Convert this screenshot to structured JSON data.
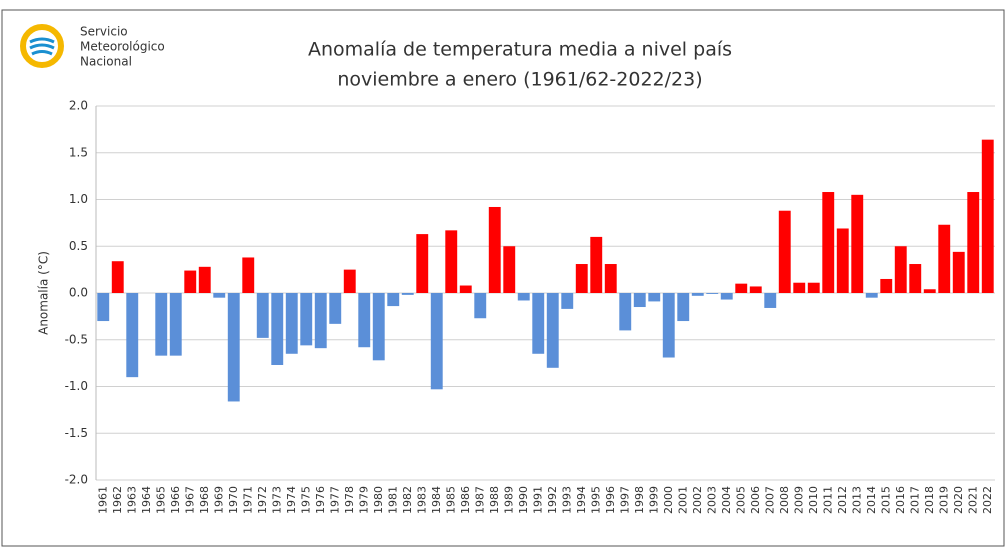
{
  "logo": {
    "lines": [
      "Servicio",
      "Meteorológico",
      "Nacional"
    ]
  },
  "chart_data": {
    "type": "bar",
    "title": "Anomalía de temperatura media a nivel país",
    "subtitle": "noviembre a enero (1961/62-2022/23)",
    "y_label": "Anomalía (°C)",
    "categories": [
      "1961",
      "1962",
      "1963",
      "1964",
      "1965",
      "1966",
      "1967",
      "1968",
      "1969",
      "1970",
      "1971",
      "1972",
      "1973",
      "1974",
      "1975",
      "1976",
      "1977",
      "1978",
      "1979",
      "1980",
      "1981",
      "1982",
      "1983",
      "1984",
      "1985",
      "1986",
      "1987",
      "1988",
      "1989",
      "1990",
      "1991",
      "1992",
      "1993",
      "1994",
      "1995",
      "1996",
      "1997",
      "1998",
      "1999",
      "2000",
      "2001",
      "2002",
      "2003",
      "2004",
      "2005",
      "2006",
      "2007",
      "2008",
      "2009",
      "2010",
      "2011",
      "2012",
      "2013",
      "2014",
      "2015",
      "2016",
      "2017",
      "2018",
      "2019",
      "2020",
      "2021",
      "2022"
    ],
    "values": [
      -0.3,
      0.34,
      -0.9,
      0.0,
      -0.67,
      -0.67,
      0.24,
      0.28,
      -0.05,
      -1.16,
      0.38,
      -0.48,
      -0.77,
      -0.65,
      -0.56,
      -0.59,
      -0.33,
      0.25,
      -0.58,
      -0.72,
      -0.14,
      -0.02,
      0.63,
      -1.03,
      0.67,
      0.08,
      -0.27,
      0.92,
      0.5,
      -0.08,
      -0.65,
      -0.8,
      -0.17,
      0.31,
      0.6,
      0.31,
      -0.4,
      -0.15,
      -0.09,
      -0.69,
      -0.3,
      -0.03,
      -0.01,
      -0.07,
      0.1,
      0.07,
      -0.16,
      0.88,
      0.11,
      0.11,
      1.08,
      0.69,
      1.05,
      -0.05,
      0.15,
      0.5,
      0.31,
      0.04,
      0.73,
      0.44,
      1.08,
      1.64
    ],
    "positive_color": "#ff0000",
    "negative_color": "#5b8fd8",
    "ylim": [
      -2,
      2
    ],
    "yticks": [
      {
        "value": -2,
        "label": "-2.0"
      },
      {
        "value": -1.5,
        "label": "-1.5"
      },
      {
        "value": -1,
        "label": "-1.0"
      },
      {
        "value": -0.5,
        "label": "-0.5"
      },
      {
        "value": 0,
        "label": "0.0"
      },
      {
        "value": 0.5,
        "label": "0.5"
      },
      {
        "value": 1,
        "label": "1.0"
      },
      {
        "value": 1.5,
        "label": "1.5"
      },
      {
        "value": 2,
        "label": "2.0"
      }
    ],
    "grid": true
  }
}
